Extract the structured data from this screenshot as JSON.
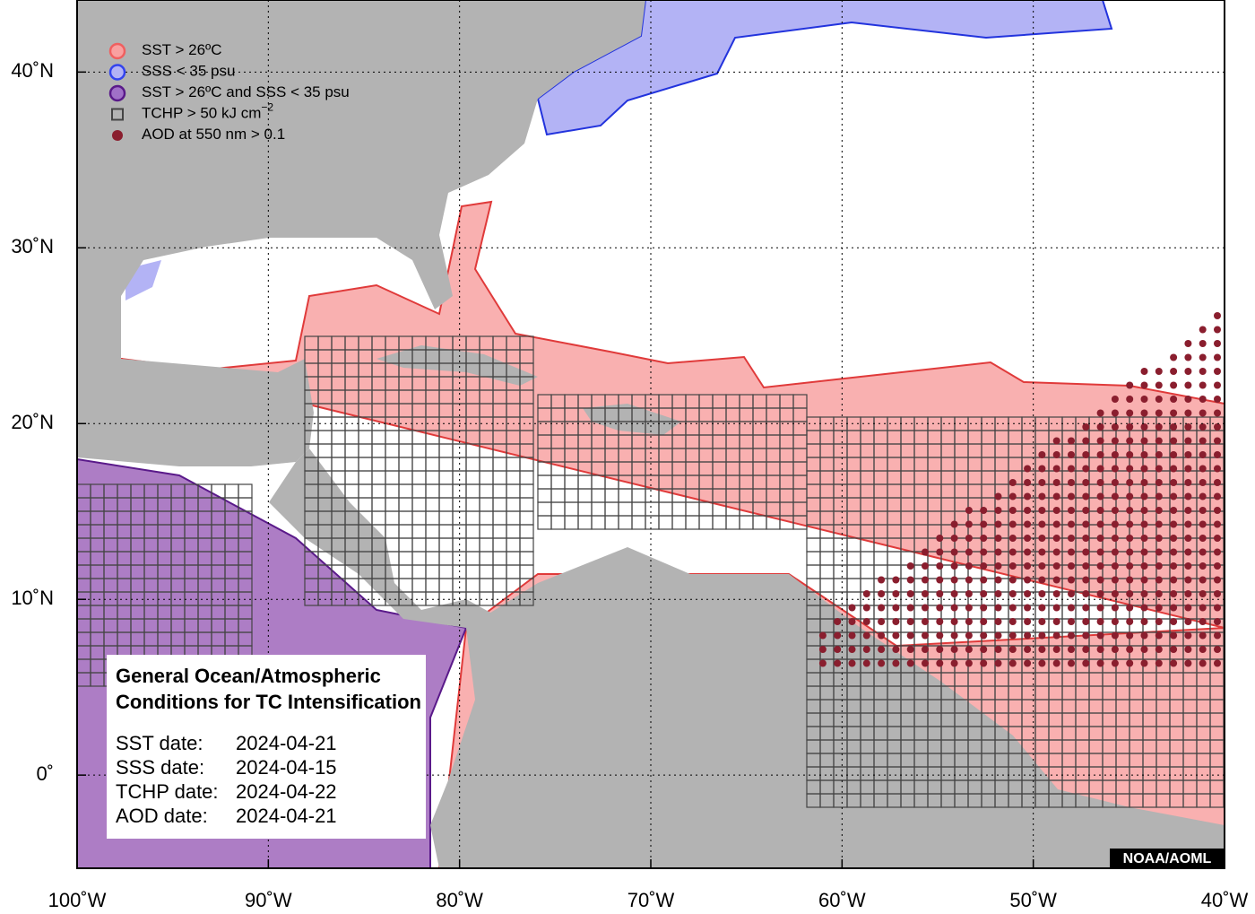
{
  "map": {
    "xlim": [
      -100,
      -40
    ],
    "ylim": [
      -5.3,
      44.1
    ],
    "xticks": [
      {
        "value": -100,
        "label": "100˚W"
      },
      {
        "value": -90,
        "label": "90˚W"
      },
      {
        "value": -80,
        "label": "80˚W"
      },
      {
        "value": -70,
        "label": "70˚W"
      },
      {
        "value": -60,
        "label": "60˚W"
      },
      {
        "value": -50,
        "label": "50˚W"
      },
      {
        "value": -40,
        "label": "40˚W"
      }
    ],
    "yticks": [
      {
        "value": 0,
        "label": "0˚"
      },
      {
        "value": 10,
        "label": "10˚N"
      },
      {
        "value": 20,
        "label": "20˚N"
      },
      {
        "value": 30,
        "label": "30˚N"
      },
      {
        "value": 40,
        "label": "40˚N"
      }
    ],
    "grid": true
  },
  "legend": [
    {
      "label": "SST > 26ºC"
    },
    {
      "label": "SSS < 35 psu"
    },
    {
      "label": "SST > 26ºC and SSS < 35 psu"
    },
    {
      "label": "TCHP > 50 kJ cm",
      "superscript": "−2"
    },
    {
      "label": "AOD at 550 nm > 0.1"
    }
  ],
  "info": {
    "title": [
      "General Ocean/Atmospheric",
      "Conditions for TC Intensification"
    ],
    "dates": [
      {
        "label": "SST date:",
        "value": "2024-04-21"
      },
      {
        "label": "SSS date:",
        "value": "2024-04-15"
      },
      {
        "label": "TCHP date:",
        "value": "2024-04-22"
      },
      {
        "label": "AOD date:",
        "value": "2024-04-21"
      }
    ]
  },
  "credit": "NOAA/AOML"
}
